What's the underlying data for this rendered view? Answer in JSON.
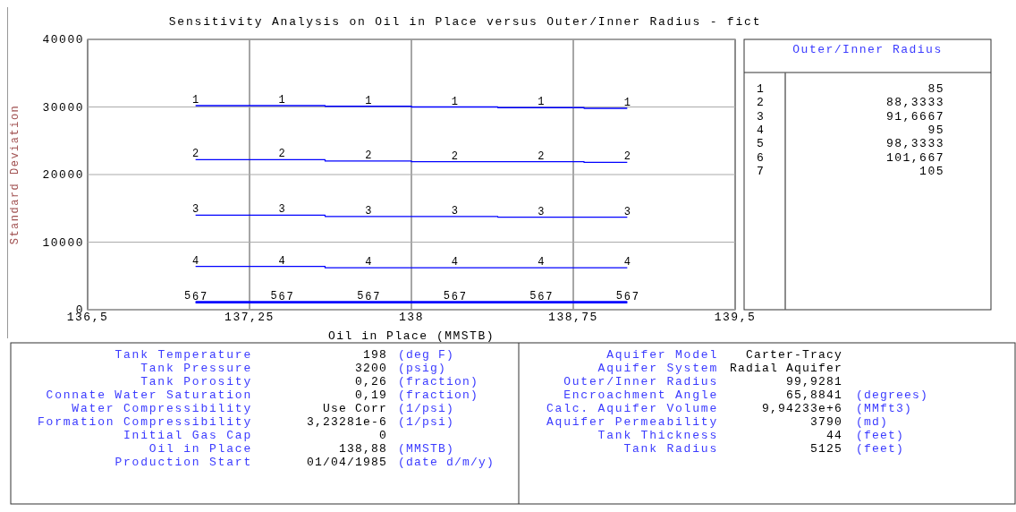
{
  "chart_data": [
    {
      "type": "step",
      "title": "Sensitivity Analysis on Oil in Place versus Outer/Inner Radius - fict",
      "xlabel": "Oil in Place (MMSTB)",
      "ylabel": "Standard Deviation",
      "legend_title": "Outer/Inner Radius",
      "annotations": [
        "1",
        "2",
        "3",
        "4",
        "5",
        "6",
        "7"
      ],
      "x": [
        137.0,
        137.4,
        137.8,
        138.2,
        138.6,
        139.0
      ],
      "xlim": [
        136.5,
        139.5
      ],
      "xticks": [
        {
          "value": 136.5,
          "label": "136,5"
        },
        {
          "value": 137.25,
          "label": "137,25"
        },
        138,
        {
          "value": 138.75,
          "label": "138,75"
        },
        {
          "value": 139.5,
          "label": "139,5"
        }
      ],
      "ylim": [
        0,
        40000
      ],
      "yticks": [
        0,
        10000,
        20000,
        30000,
        40000
      ],
      "grid": true,
      "legend": "right",
      "marker": "none",
      "line_style": "solid",
      "series": [
        {
          "name": "85",
          "color": "#0000ff",
          "values": [
            30200,
            30200,
            30100,
            30000,
            29900,
            29800
          ]
        },
        {
          "name": "88,3333",
          "color": "#0000ff",
          "values": [
            22200,
            22200,
            22000,
            21900,
            21900,
            21800
          ]
        },
        {
          "name": "91,6667",
          "color": "#0000ff",
          "values": [
            14000,
            14000,
            13800,
            13800,
            13700,
            13700
          ]
        },
        {
          "name": "95",
          "color": "#0000ff",
          "values": [
            6400,
            6400,
            6200,
            6200,
            6200,
            6200
          ]
        },
        {
          "name": "98,3333",
          "color": "#0000ff",
          "values": [
            1200,
            1200,
            1200,
            1200,
            1200,
            1200
          ]
        },
        {
          "name": "101,667",
          "color": "#0000ff",
          "values": [
            1100,
            1100,
            1100,
            1100,
            1100,
            1100
          ]
        },
        {
          "name": "105",
          "color": "#0000ff",
          "values": [
            1000,
            1000,
            1000,
            1000,
            1000,
            1000
          ]
        }
      ]
    },
    {
      "type": "other",
      "annotations": [
        "Tank Temperature",
        "198",
        "(deg F)",
        "Tank Pressure",
        "3200",
        "(psig)",
        "Tank Porosity",
        "0,26",
        "(fraction)",
        "Connate Water Saturation",
        "0,19",
        "(fraction)",
        "Water Compressibility",
        "Use Corr",
        "(1/psi)",
        "Formation Compressibility",
        "3,23281e-6",
        "(1/psi)",
        "Initial Gas Cap",
        "0",
        null,
        "Oil in Place",
        "138,88",
        "(MMSTB)",
        "Production Start",
        "01/04/1985",
        "(date d/m/y)"
      ]
    },
    {
      "type": "other",
      "annotations": [
        "Aquifer Model",
        "Carter-Tracy",
        null,
        "Aquifer System",
        "Radial Aquifer",
        null,
        "Outer/Inner Radius",
        "99,9281",
        null,
        "Encroachment Angle",
        "65,8841",
        "(degrees)",
        "Calc. Aquifer Volume",
        "9,94233e+6",
        "(MMft3)",
        "Aquifer Permeability",
        "3790",
        "(md)",
        "Tank Thickness",
        "44",
        "(feet)",
        "Tank Radius",
        "5125",
        "(feet)"
      ]
    }
  ]
}
